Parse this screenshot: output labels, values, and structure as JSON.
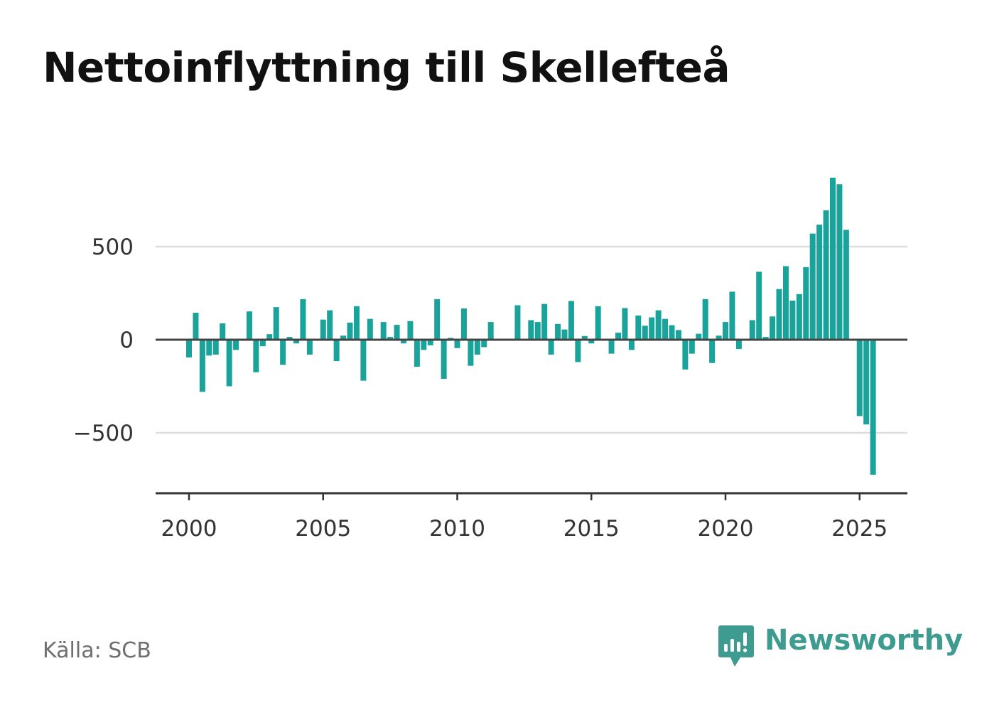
{
  "title": "Nettoinflyttning till Skellefteå",
  "source": "Källa: SCB",
  "brand": {
    "name": "Newsworthy",
    "icon": "newsworthy-logo-icon",
    "color": "#3d9b8f"
  },
  "colors": {
    "bar": "#1aa39a",
    "grid": "#dddddd",
    "zero_line": "#444444",
    "axis": "#333333"
  },
  "chart_data": {
    "type": "bar",
    "title": "Nettoinflyttning till Skellefteå",
    "xlabel": "",
    "ylabel": "",
    "ylim": [
      -830,
      880
    ],
    "xlim": [
      1998.6,
      2026.75
    ],
    "y_ticks": [
      {
        "value": 500,
        "label": "500"
      },
      {
        "value": 0,
        "label": "0"
      },
      {
        "value": -500,
        "label": "−500"
      }
    ],
    "x_ticks": [
      {
        "value": 2000,
        "label": "2000"
      },
      {
        "value": 2005,
        "label": "2005"
      },
      {
        "value": 2010,
        "label": "2010"
      },
      {
        "value": 2015,
        "label": "2015"
      },
      {
        "value": 2020,
        "label": "2020"
      },
      {
        "value": 2025,
        "label": "2025"
      }
    ],
    "grid": true,
    "legend": "none",
    "series": [
      {
        "x": [
          2000.0,
          2000.25,
          2000.5,
          2000.75,
          2001.0,
          2001.25,
          2001.5,
          2001.75,
          2002.0,
          2002.25,
          2002.5,
          2002.75,
          2003.0,
          2003.25,
          2003.5,
          2003.75,
          2004.0,
          2004.25,
          2004.5,
          2004.75,
          2005.0,
          2005.25,
          2005.5,
          2005.75,
          2006.0,
          2006.25,
          2006.5,
          2006.75,
          2007.0,
          2007.25,
          2007.5,
          2007.75,
          2008.0,
          2008.25,
          2008.5,
          2008.75,
          2009.0,
          2009.25,
          2009.5,
          2009.75,
          2010.0,
          2010.25,
          2010.5,
          2010.75,
          2011.0,
          2011.25,
          2011.5,
          2011.75,
          2012.0,
          2012.25,
          2012.5,
          2012.75,
          2013.0,
          2013.25,
          2013.5,
          2013.75,
          2014.0,
          2014.25,
          2014.5,
          2014.75,
          2015.0,
          2015.25,
          2015.5,
          2015.75,
          2016.0,
          2016.25,
          2016.5,
          2016.75,
          2017.0,
          2017.25,
          2017.5,
          2017.75,
          2018.0,
          2018.25,
          2018.5,
          2018.75,
          2019.0,
          2019.25,
          2019.5,
          2019.75,
          2020.0,
          2020.25,
          2020.5,
          2020.75,
          2021.0,
          2021.25,
          2021.5,
          2021.75,
          2022.0,
          2022.25,
          2022.5,
          2022.75,
          2023.0,
          2023.25,
          2023.5,
          2023.75,
          2024.0,
          2024.25,
          2024.5,
          2024.75,
          2025.0,
          2025.25
        ],
        "values": [
          -95,
          145,
          -280,
          -85,
          -80,
          88,
          -250,
          -55,
          0,
          152,
          -175,
          -35,
          30,
          175,
          -135,
          15,
          -20,
          218,
          -80,
          0,
          108,
          158,
          -115,
          22,
          92,
          180,
          -220,
          112,
          0,
          95,
          15,
          80,
          -20,
          100,
          -145,
          -55,
          -30,
          218,
          -210,
          10,
          -45,
          168,
          -140,
          -80,
          -40,
          95,
          0,
          0,
          0,
          185,
          0,
          105,
          95,
          192,
          -80,
          85,
          55,
          208,
          -120,
          20,
          -20,
          180,
          0,
          -75,
          38,
          170,
          -55,
          130,
          75,
          120,
          158,
          112,
          78,
          52,
          -160,
          -75,
          32,
          218,
          -125,
          22,
          95,
          258,
          -50,
          0,
          105,
          365,
          15,
          125,
          272,
          395,
          210,
          245,
          390,
          570,
          618,
          695,
          870,
          835,
          590,
          0,
          -410,
          -455
        ]
      },
      {
        "x": [
          2025.5
        ],
        "values": [
          -725
        ]
      }
    ]
  }
}
